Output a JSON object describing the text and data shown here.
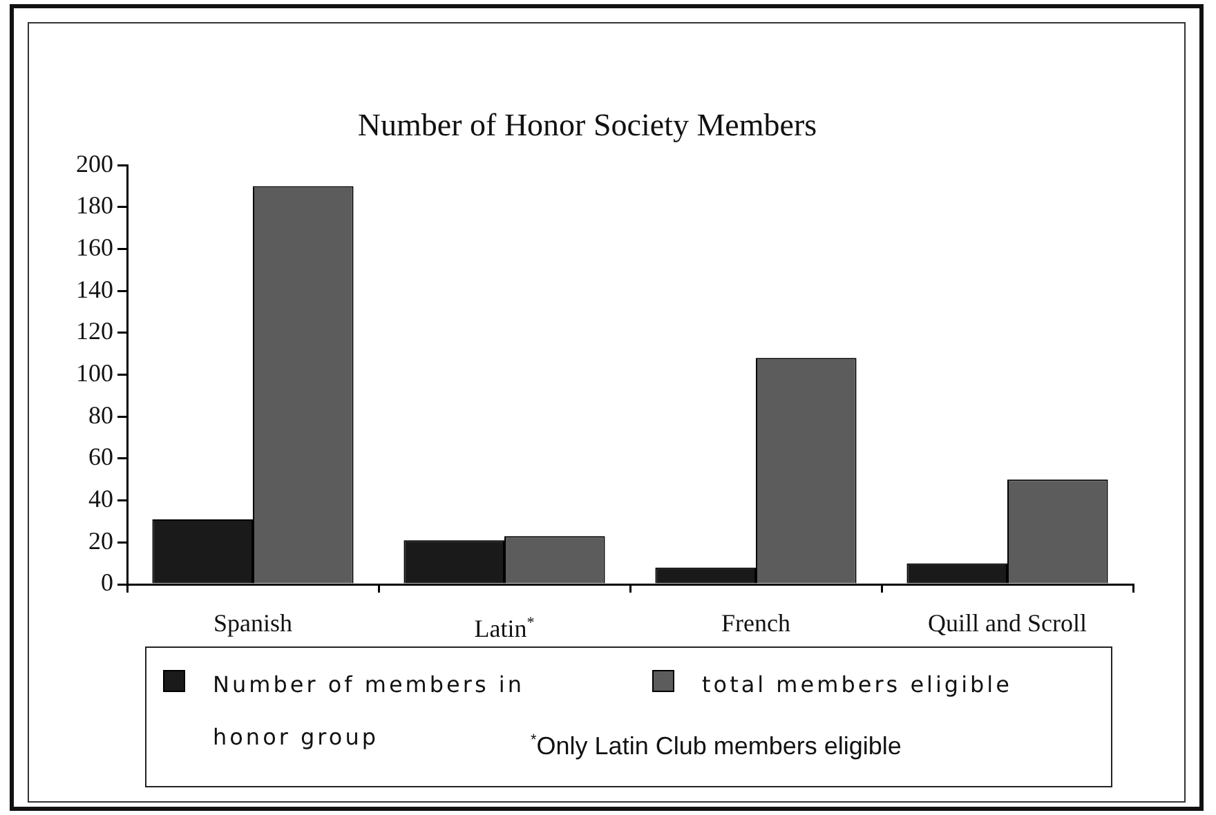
{
  "chart_data": {
    "type": "bar",
    "title": "Number of Honor Society Members",
    "categories": [
      "Spanish",
      "Latin$^{*}$",
      "French",
      "Quill and Scroll"
    ],
    "series": [
      {
        "name": "Number of members in honor group",
        "color": "#1a1a1a",
        "values": [
          31,
          21,
          8,
          10
        ]
      },
      {
        "name": "total members eligible",
        "color": "#5c5c5c",
        "values": [
          190,
          23,
          108,
          50
        ]
      }
    ],
    "ylim": [
      0,
      200
    ],
    "yticks": [
      0,
      20,
      40,
      60,
      80,
      100,
      120,
      140,
      160,
      180,
      200
    ],
    "grid": false,
    "legend": "bottom",
    "annotations": [
      "$^{*}$Only Latin Club members eligible"
    ]
  }
}
